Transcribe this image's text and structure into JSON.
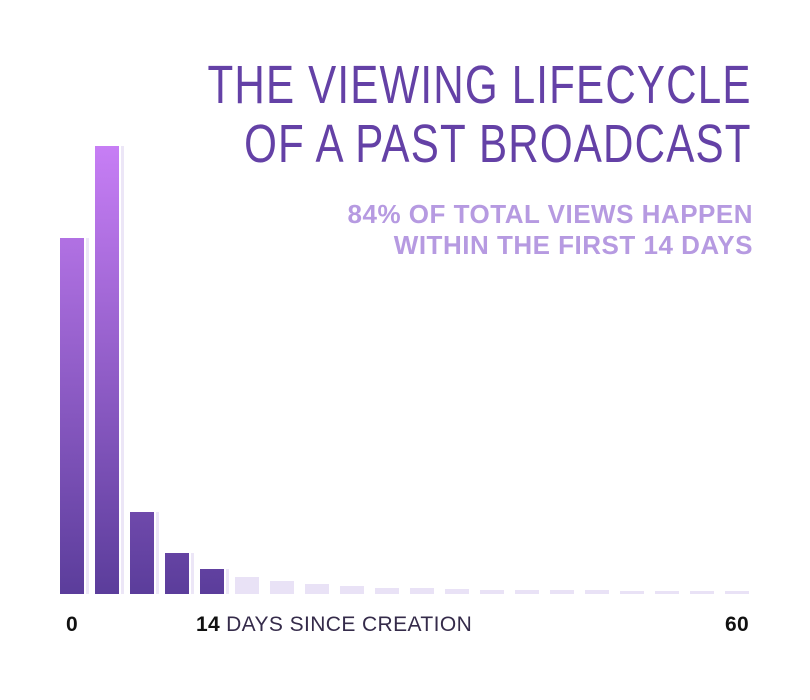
{
  "title": {
    "line1": "THE VIEWING LIFECYCLE",
    "line2": "OF A PAST BROADCAST"
  },
  "subtitle": {
    "line1": "84% OF TOTAL VIEWS HAPPEN",
    "line2": "WITHIN THE FIRST 14 DAYS"
  },
  "colors": {
    "title": "#6441a6",
    "subtitle": "#b69ae1",
    "bar_top": "#c77ef5",
    "bar_bottom": "#5b3d9b",
    "tail": "#e9e2f6",
    "axis_number": "#111111",
    "axis_text": "#352b4a"
  },
  "chart_data": {
    "type": "bar",
    "title": "THE VIEWING LIFECYCLE OF A PAST BROADCAST",
    "subtitle": "84% OF TOTAL VIEWS HAPPEN WITHIN THE FIRST 14 DAYS",
    "xlabel": "DAYS SINCE CREATION",
    "x_range": [
      0,
      60
    ],
    "x_ticks": [
      {
        "label": "0",
        "bar_index": 0
      },
      {
        "label": "14",
        "bar_index": 4
      },
      {
        "label": "60",
        "bar_index": 19
      }
    ],
    "bins": 20,
    "days_per_bin": 3,
    "values_pct_of_peak": [
      79.5,
      100,
      18.3,
      9.2,
      5.6,
      3.8,
      2.9,
      2.2,
      1.8,
      1.45,
      1.25,
      1.1,
      1.0,
      0.9,
      0.85,
      0.8,
      0.75,
      0.7,
      0.67,
      0.65
    ],
    "highlighted_first_bars": 5,
    "highlight_meaning": "views within first 14 days (84% of total)",
    "ylabel": "",
    "grid": false,
    "legend": false,
    "annotation": "84% OF TOTAL VIEWS HAPPEN WITHIN THE FIRST 14 DAYS"
  }
}
